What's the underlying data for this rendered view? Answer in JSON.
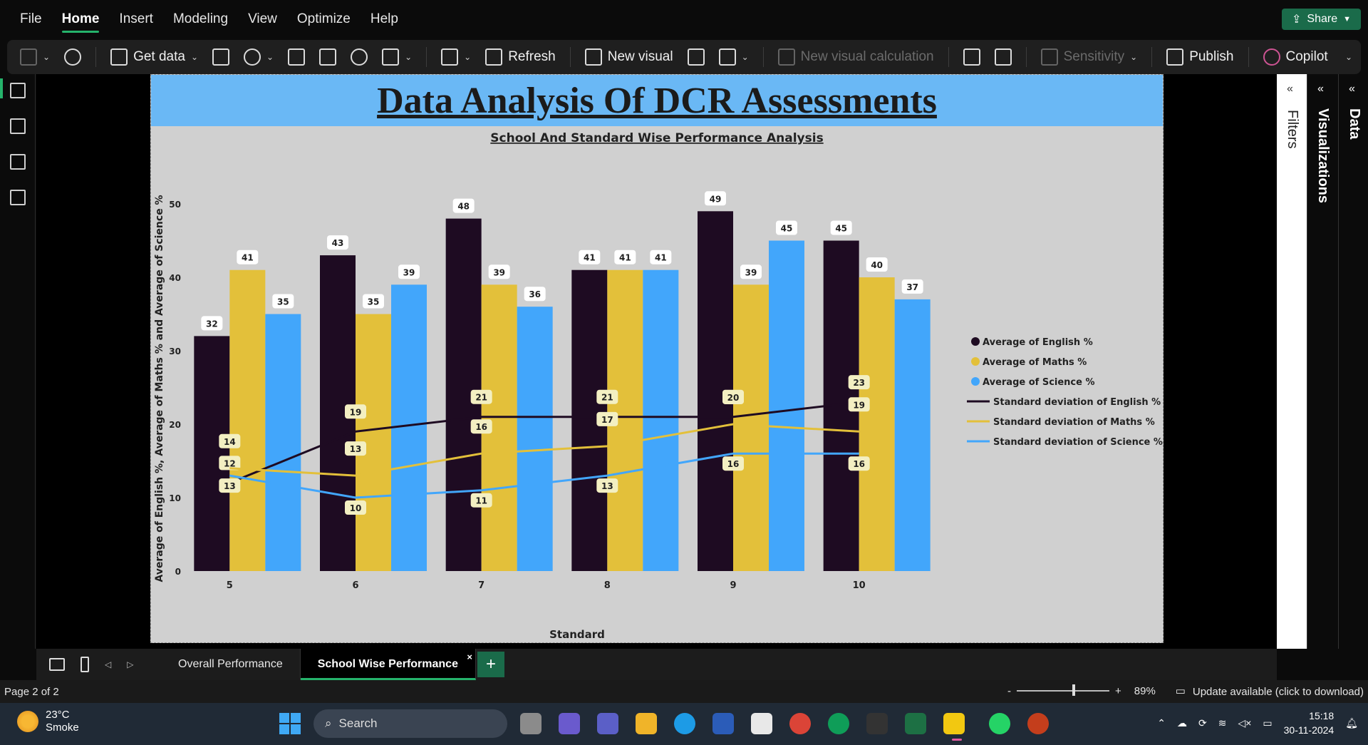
{
  "menu": {
    "items": [
      "File",
      "Home",
      "Insert",
      "Modeling",
      "View",
      "Optimize",
      "Help"
    ],
    "active": "Home",
    "share_label": "Share"
  },
  "ribbon": {
    "get_data": "Get data",
    "refresh": "Refresh",
    "new_visual": "New visual",
    "new_visual_calculation": "New visual calculation",
    "sensitivity": "Sensitivity",
    "publish": "Publish",
    "copilot": "Copilot"
  },
  "report": {
    "title": "Data Analysis Of DCR Assessments"
  },
  "panes": {
    "filters": "Filters",
    "visualizations": "Visualizations",
    "data": "Data"
  },
  "chart_data": {
    "type": "bar",
    "title": "School And Standard Wise Performance Analysis",
    "xlabel": "Standard",
    "ylabel": "Average of English %, Average of Maths % and Average of Science %",
    "categories": [
      "5",
      "6",
      "7",
      "8",
      "9",
      "10"
    ],
    "ylim": [
      0,
      50
    ],
    "yticks": [
      0,
      10,
      20,
      30,
      40,
      50
    ],
    "series": [
      {
        "name": "Average of  English %",
        "kind": "bar",
        "color": "#1e0b22",
        "values": [
          32,
          43,
          48,
          41,
          49,
          45
        ]
      },
      {
        "name": "Average of  Maths %",
        "kind": "bar",
        "color": "#e3c03a",
        "values": [
          41,
          35,
          39,
          41,
          39,
          40
        ]
      },
      {
        "name": "Average of Science %",
        "kind": "bar",
        "color": "#42a6fb",
        "values": [
          35,
          39,
          36,
          41,
          45,
          37
        ]
      },
      {
        "name": "Standard deviation of  English %",
        "kind": "line",
        "color": "#1e0b22",
        "values": [
          12,
          19,
          21,
          21,
          21,
          23
        ]
      },
      {
        "name": "Standard deviation of  Maths %",
        "kind": "line",
        "color": "#e3c03a",
        "values": [
          14,
          13,
          16,
          17,
          20,
          19
        ]
      },
      {
        "name": "Standard deviation of Science %",
        "kind": "line",
        "color": "#42a6fb",
        "values": [
          13,
          10,
          11,
          13,
          16,
          16
        ]
      }
    ],
    "line_labels": {
      "english": [
        12,
        19,
        21,
        21,
        21,
        23
      ],
      "maths": [
        14,
        13,
        16,
        17,
        20,
        19
      ],
      "science": [
        13,
        10,
        11,
        13,
        16,
        16
      ]
    },
    "legend_position": "right",
    "grid": false
  },
  "tabs": {
    "pages": [
      "Overall Performance",
      "School Wise Performance"
    ],
    "active": "School Wise Performance"
  },
  "status": {
    "page": "Page 2 of 2",
    "zoom": "89%",
    "zoom_value": 0.62,
    "update": "Update available (click to download)"
  },
  "taskbar": {
    "temp": "23°C",
    "weather": "Smoke",
    "search": "Search",
    "time": "15:18",
    "date": "30-11-2024"
  }
}
